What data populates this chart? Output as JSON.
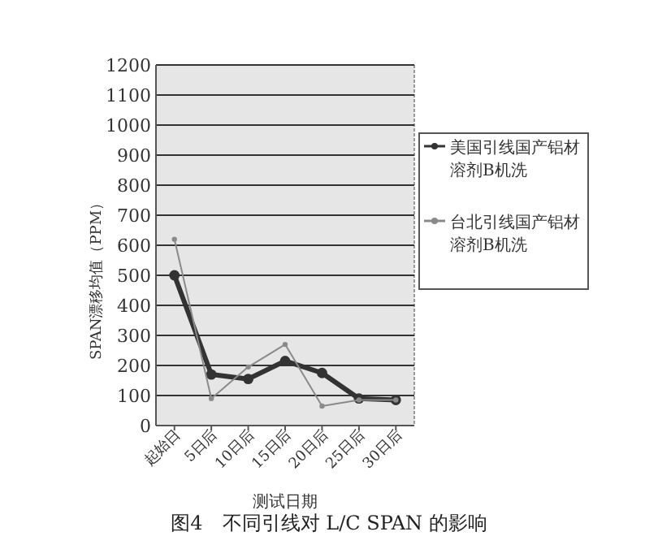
{
  "chart_data": {
    "type": "line",
    "title": "图4　不同引线对 L/C SPAN 的影响",
    "xlabel": "测试日期",
    "ylabel": "SPAN漂移均值（PPM）",
    "categories": [
      "起始日",
      "5日后",
      "10日后",
      "15日后",
      "20日后",
      "25日后",
      "30日后"
    ],
    "series": [
      {
        "name": "美国引线国产铝材溶剂B机洗",
        "color": "#333333",
        "values": [
          500,
          170,
          155,
          215,
          175,
          90,
          85
        ]
      },
      {
        "name": "台北引线国产铝材溶剂B机洗",
        "color": "#8a8a8a",
        "values": [
          620,
          90,
          195,
          270,
          65,
          85,
          85
        ]
      }
    ],
    "ylim": [
      0,
      1200
    ],
    "yticks": [
      0,
      100,
      200,
      300,
      400,
      500,
      600,
      700,
      800,
      900,
      1000,
      1100,
      1200
    ],
    "grid": "y",
    "legend": "right",
    "marker": "circle",
    "line_style": "solid"
  }
}
